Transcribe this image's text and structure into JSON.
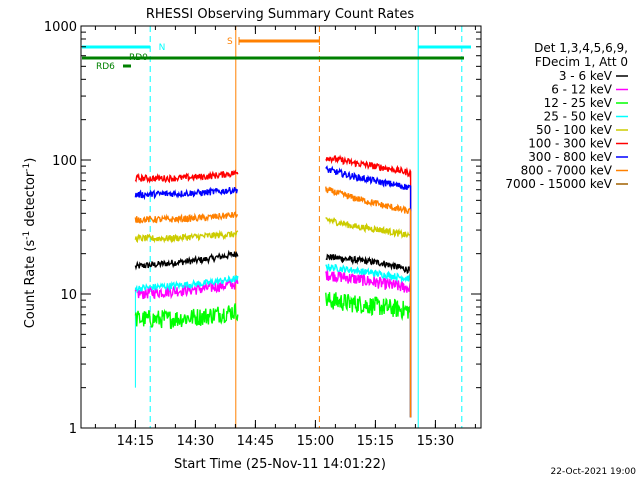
{
  "chart_data": {
    "type": "line",
    "title": "RHESSI Observing Summary Count Rates",
    "xlabel": "Start Time (25-Nov-11 14:01:22)",
    "ylabel_main": "Count Rate (s",
    "ylabel_sup1": "-1",
    "ylabel_mid": " detector",
    "ylabel_sup2": "-1",
    "ylabel_end": ")",
    "yscale": "log",
    "ylim": [
      1,
      1000
    ],
    "xlim_minutes": [
      0,
      100
    ],
    "y_ticks": [
      {
        "value": 1,
        "label": "1"
      },
      {
        "value": 10,
        "label": "10"
      },
      {
        "value": 100,
        "label": "100"
      },
      {
        "value": 1000,
        "label": "1000"
      }
    ],
    "x_ticks": [
      {
        "minute": 13.6,
        "label": "14:15"
      },
      {
        "minute": 28.6,
        "label": "14:30"
      },
      {
        "minute": 43.6,
        "label": "14:45"
      },
      {
        "minute": 58.6,
        "label": "15:00"
      },
      {
        "minute": 73.6,
        "label": "15:15"
      },
      {
        "minute": 88.6,
        "label": "15:30"
      }
    ],
    "legend_header": [
      "Det 1,3,4,5,6,9,",
      "FDecim 1, Att 0"
    ],
    "series": [
      {
        "name": "3 - 6 keV",
        "color": "#000000",
        "seg1": [
          16,
          17,
          18,
          20
        ],
        "seg2": [
          19,
          18,
          17,
          15
        ]
      },
      {
        "name": "6 - 12 keV",
        "color": "#ff00ff",
        "seg1": [
          10,
          10.5,
          11,
          12
        ],
        "seg2": [
          14,
          13,
          12,
          11
        ]
      },
      {
        "name": "12 - 25 keV",
        "color": "#00ff00",
        "seg1": [
          6.5,
          6.5,
          6.8,
          7.5
        ],
        "seg2": [
          9,
          8.5,
          8,
          7.5
        ]
      },
      {
        "name": "25 - 50 keV",
        "color": "#00ffff",
        "seg1": [
          11,
          11.5,
          12,
          13
        ],
        "seg2": [
          16,
          15,
          14,
          13
        ]
      },
      {
        "name": "50 - 100 keV",
        "color": "#cccc00",
        "seg1": [
          26,
          26,
          27,
          28
        ],
        "seg2": [
          36,
          32,
          30,
          27
        ]
      },
      {
        "name": "100 - 300 keV",
        "color": "#ff0000",
        "seg1": [
          73,
          73,
          75,
          80
        ],
        "seg2": [
          105,
          95,
          88,
          80
        ]
      },
      {
        "name": "300 - 800 keV",
        "color": "#0000ff",
        "seg1": [
          55,
          56,
          57,
          60
        ],
        "seg2": [
          85,
          75,
          68,
          62
        ]
      },
      {
        "name": "800 - 7000 keV",
        "color": "#ff8000",
        "seg1": [
          36,
          36,
          37,
          39
        ],
        "seg2": [
          60,
          52,
          46,
          41
        ]
      },
      {
        "name": "7000 - 15000 keV",
        "color": "#a06000",
        "seg1": [],
        "seg2": []
      }
    ],
    "segment_ranges_minutes": [
      [
        13.6,
        39.2
      ],
      [
        61.2,
        82.4
      ]
    ],
    "markers": {
      "N_label": "N",
      "S_label": "S",
      "RD6_label": "RD6",
      "RD0_label": "RD0"
    },
    "cyan_dashed_minutes": [
      17.3,
      95.2
    ],
    "cyan_solid_minutes": [
      84.3
    ],
    "orange_solid_minutes": [
      38.7
    ],
    "orange_dashed_minutes": [
      59.6
    ]
  },
  "footer": {
    "date": "22-Oct-2021 19:00"
  }
}
